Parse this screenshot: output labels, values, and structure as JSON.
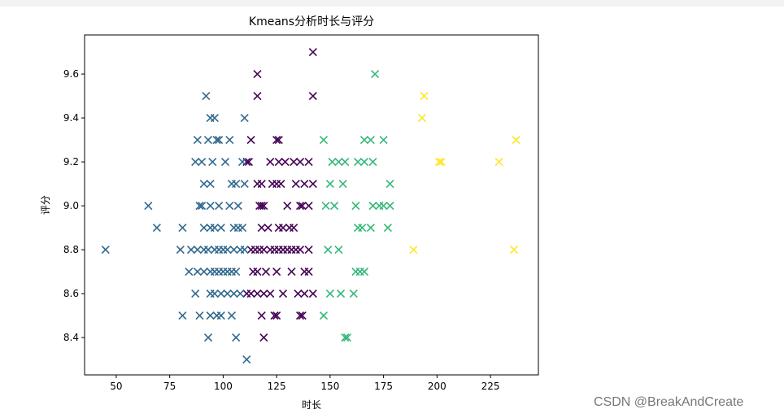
{
  "chart_data": {
    "type": "scatter",
    "title": "Kmeans分析时长与评分",
    "x_label": "时长",
    "y_label": "评分",
    "marker": "x",
    "xlim": [
      35.2,
      247.4
    ],
    "ylim": [
      8.23,
      9.778
    ],
    "xticks": [
      50,
      75,
      100,
      125,
      150,
      175,
      200,
      225
    ],
    "yticks": [
      8.4,
      8.6,
      8.8,
      {
        "value": 9,
        "label": "9.0"
      },
      9.2,
      9.4,
      9.6
    ],
    "series": [
      {
        "color": "#440154",
        "x": [
          142,
          116,
          116,
          142,
          113,
          125,
          126,
          112,
          111,
          122,
          126,
          129,
          133,
          136,
          140,
          116,
          118,
          123,
          125,
          127,
          134,
          138,
          142,
          117,
          118,
          119,
          130,
          136,
          137,
          140,
          118,
          121,
          126,
          128,
          131,
          133,
          113,
          115,
          117,
          119,
          122,
          124,
          126,
          128,
          130,
          132,
          134,
          136,
          140,
          114,
          116,
          120,
          125,
          132,
          138,
          140,
          111,
          113,
          116,
          119,
          122,
          128,
          135,
          138,
          142,
          118,
          124,
          125,
          136,
          137,
          119
        ],
        "y": [
          9.7,
          9.6,
          9.5,
          9.5,
          9.3,
          9.3,
          9.3,
          9.2,
          9.2,
          9.2,
          9.2,
          9.2,
          9.2,
          9.2,
          9.2,
          9.1,
          9.1,
          9.1,
          9.1,
          9.1,
          9.1,
          9.1,
          9.1,
          9.0,
          9.0,
          9.0,
          9.0,
          9.0,
          9.0,
          9.0,
          8.9,
          8.9,
          8.9,
          8.9,
          8.9,
          8.9,
          8.8,
          8.8,
          8.8,
          8.8,
          8.8,
          8.8,
          8.8,
          8.8,
          8.8,
          8.8,
          8.8,
          8.8,
          8.8,
          8.7,
          8.7,
          8.7,
          8.7,
          8.7,
          8.7,
          8.7,
          8.6,
          8.6,
          8.6,
          8.6,
          8.6,
          8.6,
          8.6,
          8.6,
          8.6,
          8.5,
          8.5,
          8.5,
          8.5,
          8.5,
          8.4
        ]
      },
      {
        "color": "#31688e",
        "x": [
          92,
          94,
          96,
          110,
          88,
          93,
          97,
          98,
          103,
          87,
          90,
          95,
          101,
          109,
          91,
          94,
          104,
          106,
          110,
          65,
          89,
          90,
          94,
          98,
          103,
          107,
          69,
          81,
          91,
          94,
          96,
          99,
          105,
          107,
          109,
          45,
          80,
          85,
          88,
          91,
          93,
          96,
          98,
          100,
          102,
          105,
          108,
          110,
          84,
          88,
          91,
          94,
          96,
          98,
          100,
          102,
          104,
          106,
          87,
          94,
          96,
          99,
          102,
          105,
          108,
          81,
          89,
          94,
          97,
          99,
          104,
          93,
          106,
          111
        ],
        "y": [
          9.5,
          9.4,
          9.4,
          9.4,
          9.3,
          9.3,
          9.3,
          9.3,
          9.3,
          9.2,
          9.2,
          9.2,
          9.2,
          9.2,
          9.1,
          9.1,
          9.1,
          9.1,
          9.1,
          9.0,
          9.0,
          9.0,
          9.0,
          9.0,
          9.0,
          9.0,
          8.9,
          8.9,
          8.9,
          8.9,
          8.9,
          8.9,
          8.9,
          8.9,
          8.9,
          8.8,
          8.8,
          8.8,
          8.8,
          8.8,
          8.8,
          8.8,
          8.8,
          8.8,
          8.8,
          8.8,
          8.8,
          8.8,
          8.7,
          8.7,
          8.7,
          8.7,
          8.7,
          8.7,
          8.7,
          8.7,
          8.7,
          8.7,
          8.6,
          8.6,
          8.6,
          8.6,
          8.6,
          8.6,
          8.6,
          8.5,
          8.5,
          8.5,
          8.5,
          8.5,
          8.5,
          8.4,
          8.4,
          8.3
        ]
      },
      {
        "color": "#35b779",
        "x": [
          171,
          147,
          166,
          169,
          175,
          151,
          154,
          157,
          163,
          166,
          170,
          150,
          156,
          178,
          148,
          152,
          162,
          170,
          173,
          175,
          178,
          163,
          165,
          169,
          177,
          149,
          154,
          162,
          164,
          166,
          150,
          155,
          161,
          147,
          157,
          158
        ],
        "y": [
          9.6,
          9.3,
          9.3,
          9.3,
          9.3,
          9.2,
          9.2,
          9.2,
          9.2,
          9.2,
          9.2,
          9.1,
          9.1,
          9.1,
          9.0,
          9.0,
          9.0,
          9.0,
          9.0,
          9.0,
          9.0,
          8.9,
          8.9,
          8.9,
          8.9,
          8.8,
          8.8,
          8.7,
          8.7,
          8.7,
          8.6,
          8.6,
          8.6,
          8.5,
          8.4,
          8.4
        ]
      },
      {
        "color": "#fde725",
        "x": [
          194,
          193,
          237,
          201,
          202,
          229,
          189,
          236
        ],
        "y": [
          9.5,
          9.4,
          9.3,
          9.2,
          9.2,
          9.2,
          8.8,
          8.8
        ]
      }
    ]
  },
  "watermark": "CSDN @BreakAndCreate"
}
